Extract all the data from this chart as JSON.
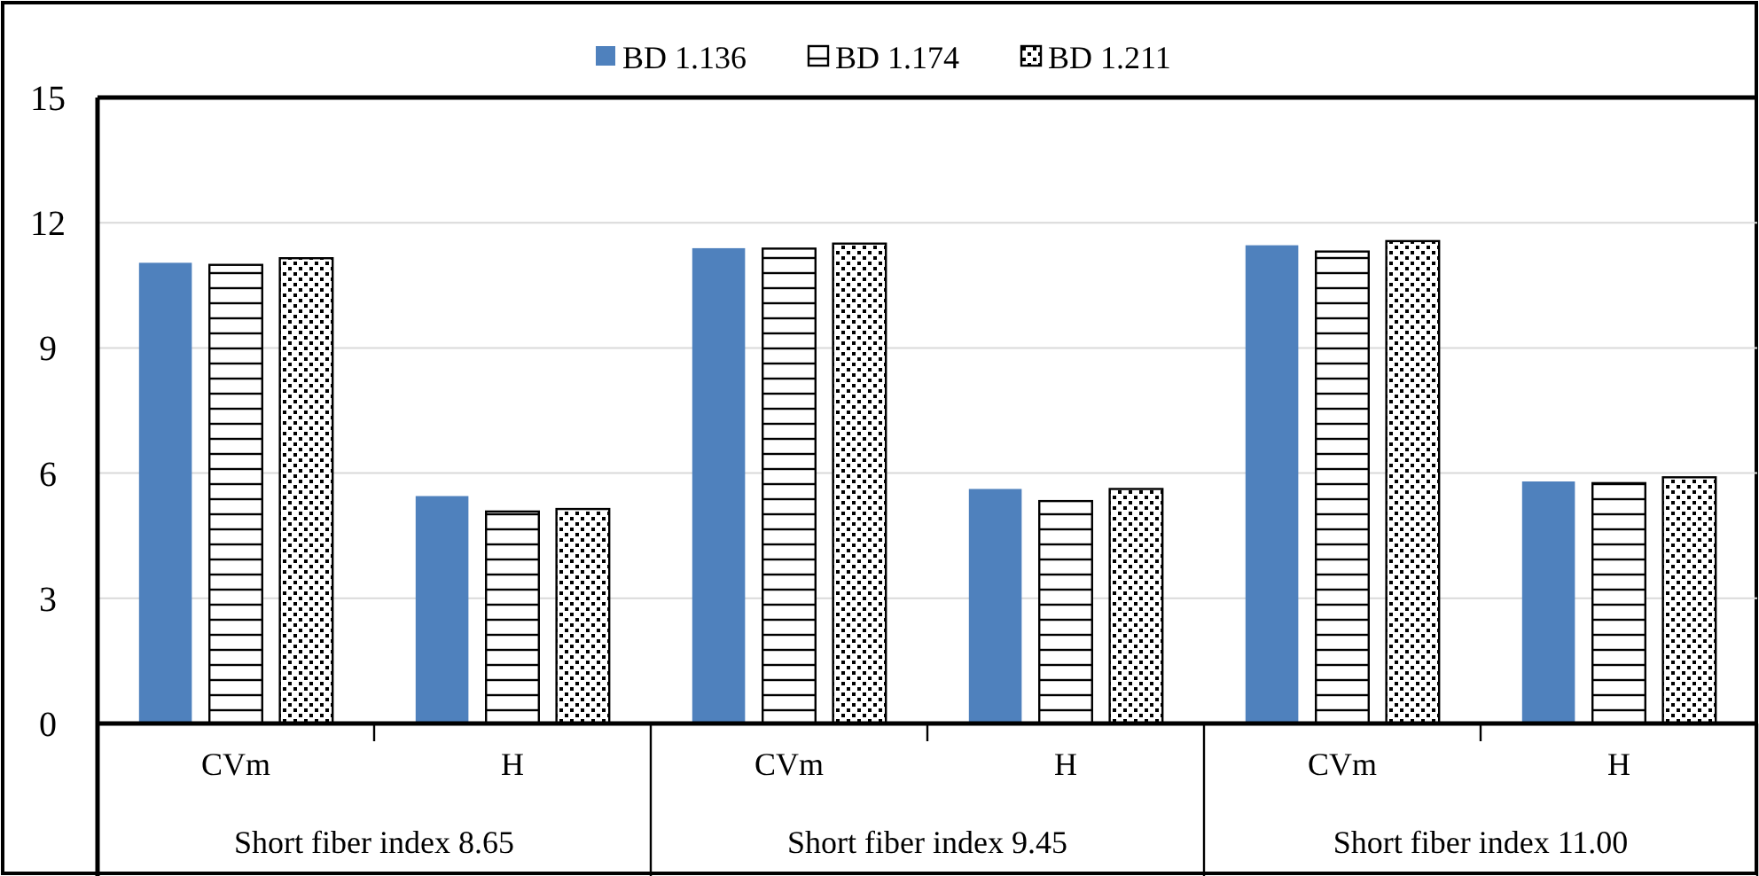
{
  "chart_data": {
    "type": "bar",
    "categories": [
      "CVm",
      "H",
      "CVm",
      "H",
      "CVm",
      "H"
    ],
    "annotations": [
      "Short fiber index 8.65",
      "Short fiber index 9.45",
      "Short fiber index 11.00"
    ],
    "series": [
      {
        "name": "BD 1.136",
        "color": "#4f81bd",
        "values": [
          11.04,
          5.45,
          11.39,
          5.62,
          11.46,
          5.8
        ]
      },
      {
        "name": "BD 1.174",
        "color": "#000000",
        "values": [
          10.99,
          5.08,
          11.38,
          5.33,
          11.31,
          5.76
        ]
      },
      {
        "name": "BD 1.211",
        "color": "#000000",
        "values": [
          11.15,
          5.14,
          11.5,
          5.62,
          11.56,
          5.9
        ]
      }
    ],
    "ylim": [
      0,
      15
    ],
    "yticks": [
      0,
      3,
      6,
      9,
      12,
      15
    ],
    "grid": "y",
    "legend": "top"
  }
}
